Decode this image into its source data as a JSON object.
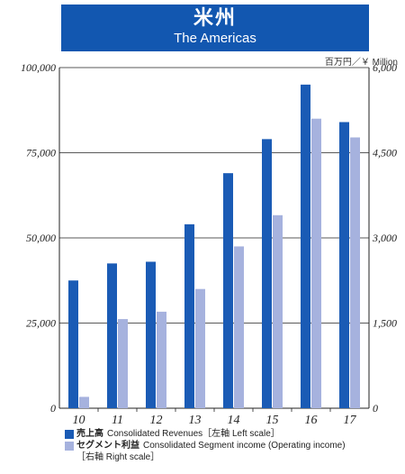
{
  "header": {
    "title_ja": "米州",
    "title_en": "The Americas"
  },
  "unit_label": "百万円／￥ Million",
  "colors": {
    "banner": "#1257b0",
    "revenue": "#1a5bb5",
    "segment_income": "#a6b2de"
  },
  "legend": {
    "revenue_ja": "売上高",
    "revenue_en": "Consolidated Revenues",
    "revenue_scale": "［左軸  Left scale］",
    "segment_ja": "セグメント利益",
    "segment_en": "Consolidated Segment income (Operating income)",
    "segment_scale": "［右軸  Right scale］"
  },
  "chart_data": {
    "type": "bar",
    "categories": [
      "10",
      "11",
      "12",
      "13",
      "14",
      "15",
      "16",
      "17"
    ],
    "series": [
      {
        "name": "売上高 Consolidated Revenues",
        "axis": "left",
        "values": [
          37500,
          42500,
          43000,
          54000,
          69000,
          79000,
          95000,
          84000
        ]
      },
      {
        "name": "セグメント利益 Consolidated Segment income (Operating income)",
        "axis": "right",
        "values": [
          200,
          1570,
          1700,
          2100,
          2850,
          3400,
          5100,
          4770
        ]
      }
    ],
    "left_axis": {
      "ylim": [
        0,
        100000
      ],
      "ticks": [
        "0",
        "25,000",
        "50,000",
        "75,000",
        "100,000"
      ]
    },
    "right_axis": {
      "ylim": [
        0,
        6000
      ],
      "ticks": [
        "0",
        "1,500",
        "3,000",
        "4,500",
        "6,000"
      ]
    },
    "grid": "horizontal"
  }
}
